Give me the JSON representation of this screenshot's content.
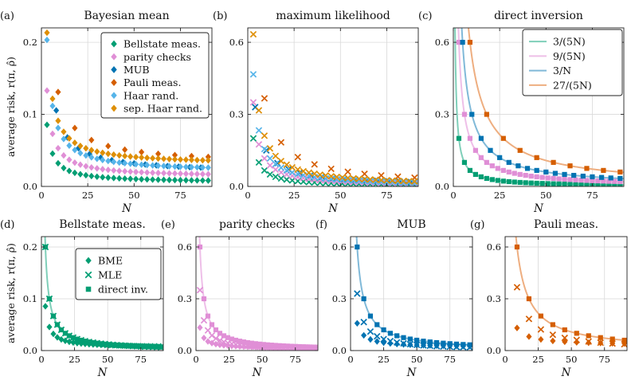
{
  "figure": {
    "ylabel": "average risk, r(π, ρ̂)"
  },
  "chart_data": [
    {
      "id": "a",
      "letter": "(a)",
      "type": "scatter",
      "title": "Bayesian mean",
      "xlabel": "N",
      "xlim": [
        0,
        92
      ],
      "ylim": [
        0,
        0.22
      ],
      "xticks": [
        0,
        25,
        50,
        75
      ],
      "xtick_labels": [
        "0",
        "25",
        "50",
        "75"
      ],
      "yticks": [
        0,
        0.1,
        0.2
      ],
      "ytick_labels": [
        "0.0",
        "0.1",
        "0.2"
      ],
      "legend": {
        "position": "top-right",
        "entries": [
          "Bellstate meas.",
          "parity checks",
          "MUB",
          "Pauli meas.",
          "Haar rand.",
          "sep. Haar rand."
        ]
      },
      "series": [
        {
          "name": "Bellstate meas.",
          "color": "#029e73",
          "marker": "diamond",
          "x0": 3,
          "dx": 3,
          "xmax": 91,
          "a": 0.24,
          "b": 0.0055
        },
        {
          "name": "parity checks",
          "color": "#e08fd6",
          "marker": "diamond",
          "x0": 3,
          "dx": 3,
          "xmax": 91,
          "a": 0.36,
          "b": 0.013
        },
        {
          "name": "MUB",
          "color": "#0173b2",
          "marker": "diamond",
          "x0": 2,
          "dx": 6,
          "xmax": 90,
          "a": 0.7,
          "b": 0.018
        },
        {
          "name": "Pauli meas.",
          "color": "#d55e00",
          "marker": "diamond",
          "x0": 9,
          "dx": 9,
          "xmax": 90,
          "a": 0.9,
          "b": 0.031
        },
        {
          "name": "Haar rand.",
          "color": "#56b4e9",
          "marker": "diamond",
          "x0": 3,
          "dx": 3,
          "xmax": 91,
          "a": 0.55,
          "b": 0.02
        },
        {
          "name": "sep. Haar rand.",
          "color": "#de8f05",
          "marker": "diamond",
          "x0": 3,
          "dx": 3,
          "xmax": 91,
          "a": 0.55,
          "b": 0.03
        }
      ]
    },
    {
      "id": "b",
      "letter": "(b)",
      "type": "scatter",
      "title": "maximum likelihood",
      "xlabel": "N",
      "xlim": [
        0,
        92
      ],
      "ylim": [
        0,
        0.66
      ],
      "xticks": [
        0,
        25,
        50,
        75
      ],
      "xtick_labels": [
        "0",
        "25",
        "50",
        "75"
      ],
      "yticks": [
        0,
        0.3,
        0.6
      ],
      "ytick_labels": [
        "0.0",
        "0.3",
        "0.6"
      ],
      "series": [
        {
          "name": "Bellstate meas.",
          "color": "#029e73",
          "marker": "x",
          "x0": 3,
          "dx": 3,
          "xmax": 91,
          "a": 0.6,
          "b": 0.0,
          "c": 0
        },
        {
          "name": "parity checks",
          "color": "#e08fd6",
          "marker": "x",
          "x0": 3,
          "dx": 3,
          "xmax": 91,
          "a": 1.05,
          "b": 0.0,
          "c": 0
        },
        {
          "name": "MUB",
          "color": "#0173b2",
          "marker": "x",
          "x0": 4,
          "dx": 6,
          "xmax": 90,
          "a": 1.65,
          "b": 0.0,
          "c": 1
        },
        {
          "name": "Pauli meas.",
          "color": "#d55e00",
          "marker": "x",
          "x0": 9,
          "dx": 9,
          "xmax": 90,
          "a": 3.3,
          "b": 0.0,
          "c": 0
        },
        {
          "name": "Haar rand.",
          "color": "#56b4e9",
          "marker": "x",
          "x0": 3,
          "dx": 3,
          "xmax": 91,
          "a": 1.4,
          "b": 0.0,
          "c": 0
        },
        {
          "name": "sep. Haar rand.",
          "color": "#de8f05",
          "marker": "x",
          "x0": 3,
          "dx": 3,
          "xmax": 91,
          "a": 1.9,
          "b": 0.0,
          "c": 0
        }
      ]
    },
    {
      "id": "c",
      "letter": "(c)",
      "type": "line+scatter",
      "title": "direct inversion",
      "xlabel": "N",
      "xlim": [
        0,
        92
      ],
      "ylim": [
        0,
        0.66
      ],
      "xticks": [
        0,
        25,
        50,
        75
      ],
      "xtick_labels": [
        "0",
        "25",
        "50",
        "75"
      ],
      "yticks": [
        0,
        0.3,
        0.6
      ],
      "ytick_labels": [
        "0.0",
        "0.3",
        "0.6"
      ],
      "legend": {
        "position": "top-right",
        "entries": [
          "3/(5N)",
          "9/(5N)",
          "3/N",
          "27/(5N)"
        ]
      },
      "lines": [
        {
          "label": "3/(5N)",
          "color": "#7fcfb9",
          "k": 0.6
        },
        {
          "label": "9/(5N)",
          "color": "#eebfe8",
          "k": 1.8
        },
        {
          "label": "3/N",
          "color": "#80b9d8",
          "k": 3.0
        },
        {
          "label": "27/(5N)",
          "color": "#eeae80",
          "k": 5.4
        }
      ],
      "series": [
        {
          "name": "Bellstate meas.",
          "color": "#029e73",
          "marker": "square",
          "x0": 3,
          "dx": 3,
          "xmax": 91,
          "k": 0.6
        },
        {
          "name": "parity checks",
          "color": "#e08fd6",
          "marker": "square",
          "x0": 3,
          "dx": 3,
          "xmax": 91,
          "k": 1.8
        },
        {
          "name": "MUB",
          "color": "#0173b2",
          "marker": "square",
          "x0": 5,
          "dx": 5,
          "xmax": 90,
          "k": 3.0
        },
        {
          "name": "Pauli meas.",
          "color": "#d55e00",
          "marker": "square",
          "x0": 9,
          "dx": 9,
          "xmax": 90,
          "k": 5.4
        }
      ]
    },
    {
      "id": "d",
      "letter": "(d)",
      "type": "line+scatter",
      "title": "Bellstate meas.",
      "xlabel": "N",
      "xlim": [
        0,
        92
      ],
      "ylim": [
        0,
        0.22
      ],
      "xticks": [
        0,
        25,
        50,
        75
      ],
      "xtick_labels": [
        "0",
        "25",
        "50",
        "75"
      ],
      "yticks": [
        0,
        0.1,
        0.2
      ],
      "ytick_labels": [
        "0.0",
        "0.1",
        "0.2"
      ],
      "legend": {
        "position": "top-right",
        "entries": [
          "BME",
          "MLE",
          "direct inv."
        ]
      },
      "lines": [
        {
          "label": "3/(5N)",
          "color": "#7fcfb9",
          "k": 0.6
        }
      ],
      "series": [
        {
          "name": "BME",
          "color": "#029e73",
          "marker": "diamond",
          "x0": 3,
          "dx": 3,
          "xmax": 91,
          "a": 0.24,
          "b": 0.0055
        },
        {
          "name": "MLE",
          "color": "#029e73",
          "marker": "x",
          "x0": 3,
          "dx": 3,
          "xmax": 91,
          "a": 0.6,
          "b": 0.0,
          "c": 0
        },
        {
          "name": "direct inv.",
          "color": "#029e73",
          "marker": "square",
          "x0": 3,
          "dx": 3,
          "xmax": 91,
          "k": 0.6
        }
      ]
    },
    {
      "id": "e",
      "letter": "(e)",
      "type": "line+scatter",
      "title": "parity checks",
      "xlabel": "N",
      "xlim": [
        0,
        92
      ],
      "ylim": [
        0,
        0.66
      ],
      "xticks": [
        0,
        25,
        50,
        75
      ],
      "xtick_labels": [
        "0",
        "25",
        "50",
        "75"
      ],
      "yticks": [
        0,
        0.3,
        0.6
      ],
      "ytick_labels": [
        "0.0",
        "0.3",
        "0.6"
      ],
      "lines": [
        {
          "label": "9/(5N)",
          "color": "#eebfe8",
          "k": 1.8
        }
      ],
      "series": [
        {
          "name": "BME",
          "color": "#e08fd6",
          "marker": "diamond",
          "x0": 3,
          "dx": 3,
          "xmax": 91,
          "a": 0.36,
          "b": 0.013
        },
        {
          "name": "MLE",
          "color": "#e08fd6",
          "marker": "x",
          "x0": 3,
          "dx": 3,
          "xmax": 91,
          "a": 1.05,
          "b": 0.0,
          "c": 0
        },
        {
          "name": "direct inv.",
          "color": "#e08fd6",
          "marker": "square",
          "x0": 3,
          "dx": 3,
          "xmax": 91,
          "k": 1.8
        }
      ]
    },
    {
      "id": "f",
      "letter": "(f)",
      "type": "line+scatter",
      "title": "MUB",
      "xlabel": "N",
      "xlim": [
        0,
        92
      ],
      "ylim": [
        0,
        0.66
      ],
      "xticks": [
        0,
        25,
        50,
        75
      ],
      "xtick_labels": [
        "0",
        "25",
        "50",
        "75"
      ],
      "yticks": [
        0,
        0.3,
        0.6
      ],
      "ytick_labels": [
        "0.0",
        "0.3",
        "0.6"
      ],
      "lines": [
        {
          "label": "3/N",
          "color": "#80b9d8",
          "k": 3.0
        }
      ],
      "series": [
        {
          "name": "BME",
          "color": "#0173b2",
          "marker": "diamond",
          "x0": 5,
          "dx": 5,
          "xmax": 90,
          "a": 0.7,
          "b": 0.018
        },
        {
          "name": "MLE",
          "color": "#0173b2",
          "marker": "x",
          "x0": 5,
          "dx": 5,
          "xmax": 90,
          "a": 1.65,
          "b": 0.0,
          "c": 0
        },
        {
          "name": "direct inv.",
          "color": "#0173b2",
          "marker": "square",
          "x0": 5,
          "dx": 5,
          "xmax": 90,
          "k": 3.0
        }
      ]
    },
    {
      "id": "g",
      "letter": "(g)",
      "type": "line+scatter",
      "title": "Pauli meas.",
      "xlabel": "N",
      "xlim": [
        0,
        92
      ],
      "ylim": [
        0,
        0.66
      ],
      "xticks": [
        0,
        25,
        50,
        75
      ],
      "xtick_labels": [
        "0",
        "25",
        "50",
        "75"
      ],
      "yticks": [
        0,
        0.3,
        0.6
      ],
      "ytick_labels": [
        "0.0",
        "0.3",
        "0.6"
      ],
      "lines": [
        {
          "label": "27/(5N)",
          "color": "#eeae80",
          "k": 5.4
        }
      ],
      "series": [
        {
          "name": "BME",
          "color": "#d55e00",
          "marker": "diamond",
          "x0": 9,
          "dx": 9,
          "xmax": 90,
          "a": 0.9,
          "b": 0.031
        },
        {
          "name": "MLE",
          "color": "#d55e00",
          "marker": "x",
          "x0": 9,
          "dx": 9,
          "xmax": 90,
          "a": 3.3,
          "b": 0.0,
          "c": 0
        },
        {
          "name": "direct inv.",
          "color": "#d55e00",
          "marker": "square",
          "x0": 9,
          "dx": 9,
          "xmax": 90,
          "k": 5.4
        }
      ]
    }
  ]
}
